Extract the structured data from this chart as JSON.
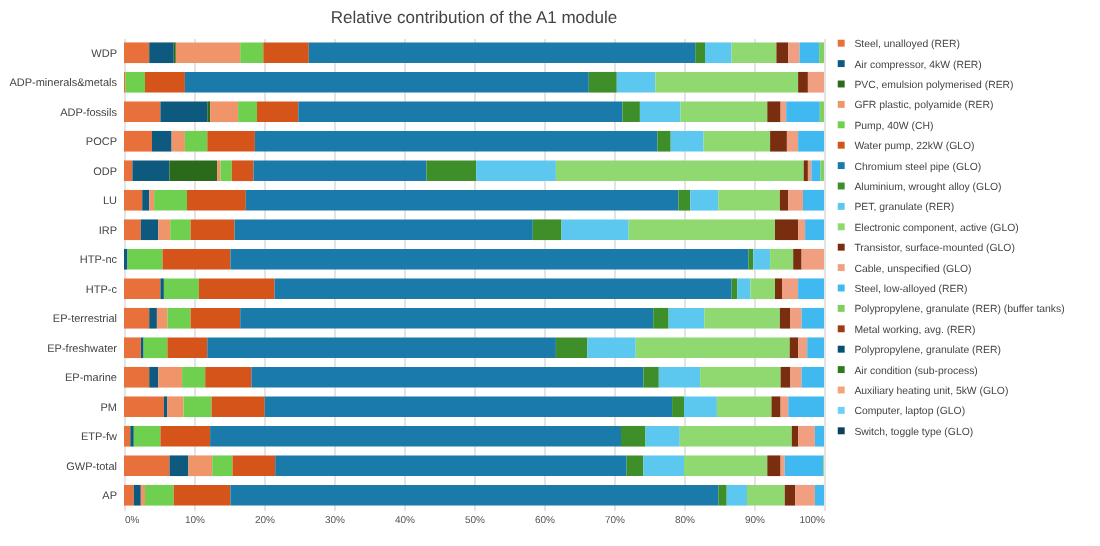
{
  "chart_data": {
    "type": "bar",
    "orientation": "horizontal",
    "stacked": true,
    "title": "Relative contribution of the A1 module",
    "categories": [
      "WDP",
      "ADP-minerals&metals",
      "ADP-fossils",
      "POCP",
      "ODP",
      "LU",
      "IRP",
      "HTP-nc",
      "HTP-c",
      "EP-terrestrial",
      "EP-freshwater",
      "EP-marine",
      "PM",
      "ETP-fw",
      "GWP-total",
      "AP"
    ],
    "xlim": [
      0,
      100
    ],
    "xticks": [
      {
        "value": 0,
        "label": "0%"
      },
      {
        "value": 10,
        "label": "10%"
      },
      {
        "value": 20,
        "label": "20%"
      },
      {
        "value": 30,
        "label": "30%"
      },
      {
        "value": 40,
        "label": "40%"
      },
      {
        "value": 50,
        "label": "50%"
      },
      {
        "value": 60,
        "label": "60%"
      },
      {
        "value": 70,
        "label": "70%"
      },
      {
        "value": 80,
        "label": "80%"
      },
      {
        "value": 90,
        "label": "90%"
      },
      {
        "value": 100,
        "label": "100%"
      }
    ],
    "grid": "x",
    "legend": "right",
    "series": [
      {
        "name": "Steel, unalloyed (RER)",
        "color": "#e8703a",
        "values": [
          3.6,
          0.2,
          5.2,
          4.0,
          1.2,
          2.6,
          2.4,
          null,
          5.2,
          3.6,
          2.4,
          3.6,
          5.7,
          0.9,
          6.5,
          1.4
        ]
      },
      {
        "name": "Air compressor, 4kW (RER)",
        "color": "#0e5a7e",
        "values": [
          3.5,
          null,
          6.7,
          2.8,
          5.3,
          1.0,
          2.5,
          0.5,
          0.5,
          1.1,
          0.4,
          1.3,
          0.5,
          0.5,
          2.7,
          1.0
        ]
      },
      {
        "name": "PVC, emulsion polymerised (RER)",
        "color": "#2a6a1a",
        "values": [
          0.3,
          null,
          0.4,
          null,
          6.8,
          null,
          null,
          null,
          null,
          null,
          null,
          null,
          null,
          null,
          null,
          null
        ]
      },
      {
        "name": "GFR plastic, polyamide (RER)",
        "color": "#f0946a",
        "values": [
          9.2,
          null,
          4.0,
          1.9,
          0.5,
          0.7,
          1.7,
          null,
          null,
          1.5,
          null,
          3.4,
          2.3,
          null,
          3.4,
          0.6
        ]
      },
      {
        "name": "Pump, 40W (CH)",
        "color": "#6fd04f",
        "values": [
          3.3,
          2.8,
          2.7,
          3.2,
          1.6,
          4.7,
          2.9,
          5.0,
          5.0,
          3.3,
          3.4,
          3.3,
          4.0,
          3.8,
          2.9,
          4.1
        ]
      },
      {
        "name": "Water pump, 22kW (GLO)",
        "color": "#d4541a",
        "values": [
          6.5,
          5.7,
          5.9,
          6.8,
          3.1,
          8.4,
          6.3,
          9.7,
          10.8,
          7.1,
          5.7,
          6.6,
          7.6,
          7.1,
          6.1,
          8.1
        ]
      },
      {
        "name": "Chromium steel pipe (GLO)",
        "color": "#1a7aaa",
        "values": [
          55.2,
          57.7,
          46.3,
          57.5,
          24.7,
          61.8,
          42.6,
          74.0,
          65.3,
          59.0,
          49.8,
          56.0,
          58.2,
          58.7,
          50.2,
          69.7
        ]
      },
      {
        "name": "Aluminium, wrought alloy (GLO)",
        "color": "#3e8e2a",
        "values": [
          1.4,
          4.0,
          2.5,
          1.9,
          7.1,
          1.7,
          4.1,
          0.7,
          0.8,
          2.2,
          4.5,
          2.2,
          1.7,
          3.5,
          2.4,
          1.2
        ]
      },
      {
        "name": "PET, granulate (RER)",
        "color": "#5cc8f0",
        "values": [
          3.8,
          5.5,
          5.8,
          4.7,
          11.4,
          4.0,
          9.6,
          2.4,
          1.9,
          5.1,
          6.9,
          5.9,
          4.7,
          4.9,
          5.8,
          2.9
        ]
      },
      {
        "name": "Electronic component, active (GLO)",
        "color": "#90d870",
        "values": [
          6.4,
          20.4,
          12.4,
          9.5,
          35.4,
          8.8,
          20.9,
          3.3,
          3.5,
          10.8,
          22.0,
          11.5,
          7.8,
          16.0,
          11.9,
          5.4
        ]
      },
      {
        "name": "Transistor, surface-mounted (GLO)",
        "color": "#7a2e10",
        "values": [
          1.7,
          1.4,
          1.9,
          2.4,
          0.6,
          1.2,
          3.3,
          1.2,
          1.0,
          1.5,
          1.2,
          1.4,
          1.3,
          0.9,
          1.9,
          1.5
        ]
      },
      {
        "name": "Cable, unspecified (GLO)",
        "color": "#f0a080",
        "values": [
          1.6,
          2.3,
          0.8,
          1.6,
          0.5,
          2.1,
          1.0,
          3.2,
          2.3,
          1.6,
          1.3,
          1.6,
          1.1,
          2.4,
          0.6,
          2.8
        ]
      },
      {
        "name": "Steel, low-alloyed (RER)",
        "color": "#40b8f0",
        "values": [
          2.8,
          null,
          4.8,
          3.7,
          1.3,
          3.0,
          2.7,
          null,
          3.7,
          3.2,
          2.4,
          3.2,
          5.1,
          1.3,
          5.5,
          1.3
        ]
      },
      {
        "name": "Polypropylene, granulate (RER) (buffer tanks)",
        "color": "#80d060",
        "values": [
          0.7,
          null,
          0.6,
          null,
          0.5,
          null,
          null,
          null,
          null,
          null,
          null,
          null,
          null,
          null,
          0.1,
          null
        ]
      },
      {
        "name": "Metal working, avg. (RER)",
        "color": "#a03a10",
        "values": [
          null,
          null,
          null,
          null,
          null,
          null,
          null,
          null,
          null,
          null,
          null,
          null,
          null,
          null,
          null,
          null
        ]
      },
      {
        "name": "Polypropylene, granulate (RER)",
        "color": "#0a4f70",
        "values": [
          null,
          null,
          null,
          null,
          null,
          null,
          null,
          null,
          null,
          null,
          null,
          null,
          null,
          null,
          null,
          null
        ]
      },
      {
        "name": "Air condition (sub-process)",
        "color": "#2e7a20",
        "values": [
          null,
          null,
          null,
          null,
          null,
          null,
          null,
          null,
          null,
          null,
          null,
          null,
          null,
          null,
          null,
          null
        ]
      },
      {
        "name": "Auxiliary heating unit, 5kW (GLO)",
        "color": "#f4a47c",
        "values": [
          null,
          null,
          null,
          null,
          null,
          null,
          null,
          null,
          null,
          null,
          null,
          null,
          null,
          null,
          null,
          null
        ]
      },
      {
        "name": "Computer, laptop (GLO)",
        "color": "#70d0f4",
        "values": [
          null,
          null,
          null,
          null,
          null,
          null,
          null,
          null,
          null,
          null,
          null,
          null,
          null,
          null,
          null,
          null
        ]
      },
      {
        "name": "Switch, toggle type (GLO)",
        "color": "#0b3f5a",
        "values": [
          null,
          null,
          null,
          null,
          null,
          null,
          null,
          null,
          null,
          null,
          null,
          null,
          null,
          null,
          null,
          null
        ]
      }
    ]
  }
}
